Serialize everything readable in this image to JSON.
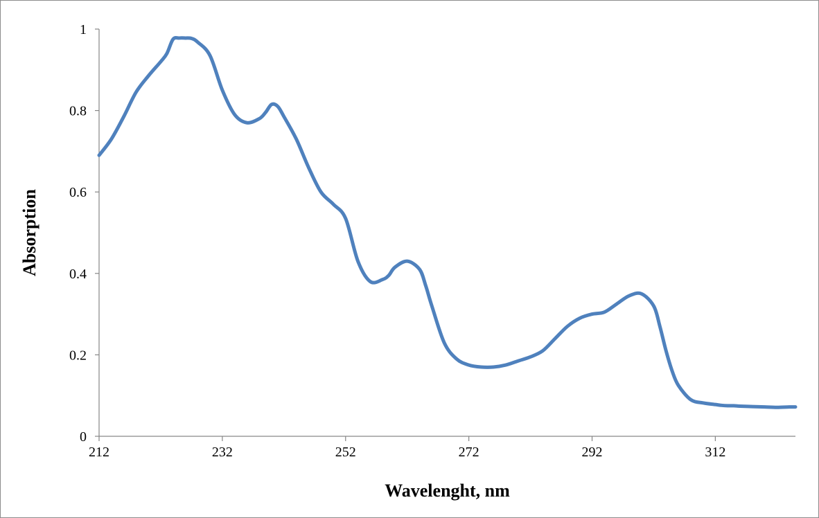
{
  "chart_data": {
    "type": "line",
    "title": "",
    "xlabel": "Wavelenght, nm",
    "ylabel": "Absorption",
    "xlim": [
      212,
      325
    ],
    "ylim": [
      0,
      1
    ],
    "x_ticks": [
      "212",
      "232",
      "252",
      "272",
      "292",
      "312"
    ],
    "y_ticks": [
      "0",
      "0.2",
      "0.4",
      "0.6",
      "0.8",
      "1"
    ],
    "grid": false,
    "legend": "none",
    "series_color": "#4f81bd",
    "series": [
      {
        "x": [
          212,
          214,
          216,
          218,
          220,
          222,
          223,
          224,
          225,
          226,
          227,
          228,
          230,
          232,
          234,
          236,
          238,
          239,
          240,
          241,
          242,
          244,
          246,
          248,
          250,
          252,
          254,
          256,
          258,
          259,
          260,
          262,
          264,
          265,
          266,
          268,
          270,
          272,
          274,
          276,
          278,
          280,
          282,
          284,
          286,
          288,
          290,
          292,
          294,
          296,
          298,
          300,
          302,
          303,
          304,
          305,
          306,
          308,
          310,
          312,
          313,
          314,
          315,
          316,
          318,
          320,
          322,
          324,
          325
        ],
        "y": [
          0.69,
          0.73,
          0.785,
          0.845,
          0.885,
          0.92,
          0.94,
          0.975,
          0.978,
          0.978,
          0.977,
          0.968,
          0.935,
          0.85,
          0.79,
          0.77,
          0.78,
          0.795,
          0.815,
          0.81,
          0.785,
          0.73,
          0.66,
          0.6,
          0.57,
          0.535,
          0.43,
          0.38,
          0.385,
          0.395,
          0.415,
          0.43,
          0.41,
          0.37,
          0.32,
          0.23,
          0.19,
          0.175,
          0.17,
          0.17,
          0.175,
          0.185,
          0.195,
          0.21,
          0.24,
          0.27,
          0.29,
          0.3,
          0.305,
          0.325,
          0.345,
          0.35,
          0.32,
          0.27,
          0.21,
          0.16,
          0.125,
          0.09,
          0.082,
          0.078,
          0.076,
          0.075,
          0.075,
          0.074,
          0.073,
          0.072,
          0.071,
          0.072,
          0.072
        ]
      }
    ]
  }
}
